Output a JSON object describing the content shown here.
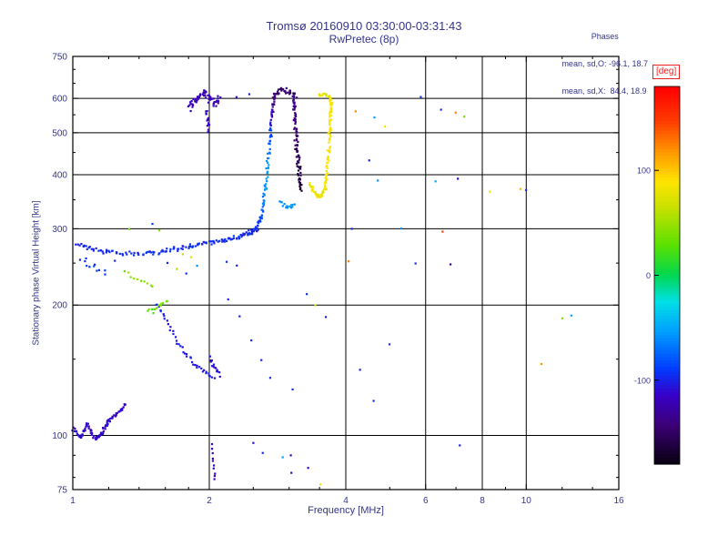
{
  "chart_data": {
    "type": "scatter",
    "title": "Tromsø 20160910 03:30:00-03:31:43",
    "subtitle": "RwPretec (8p)",
    "stats": {
      "header": "Phases",
      "line_o": "mean, sd,O: -96.1, 18.7",
      "line_x": "mean, sd,X:  84.4, 18.9"
    },
    "xlabel": "Frequency [MHz]",
    "ylabel": "Stationary phase Virtual Height [km]",
    "xscale": "log",
    "yscale": "log",
    "xlim": [
      1,
      16
    ],
    "ylim": [
      75,
      750
    ],
    "xticks": [
      1,
      2,
      4,
      6,
      8,
      10,
      16
    ],
    "yticks": [
      75,
      100,
      200,
      300,
      400,
      500,
      600,
      750
    ],
    "xgrid": [
      2,
      4,
      6,
      8,
      10
    ],
    "ygrid": [
      100,
      200,
      300,
      400,
      500,
      600
    ],
    "xminor": [
      1.2,
      1.4,
      1.6,
      1.8,
      2.5,
      3,
      3.5,
      5,
      7,
      9,
      12,
      14
    ],
    "yminor": [
      80,
      90,
      150,
      250,
      350,
      450,
      550,
      650,
      700
    ],
    "grid": true,
    "colorbar": {
      "label": "[deg]",
      "range": [
        -180,
        180
      ],
      "ticks": [
        100,
        0,
        -100
      ]
    },
    "colors": {
      "text": "#34348c",
      "axis": "#000000",
      "deg_label": "#ee2222",
      "background": "#ffffff"
    },
    "marker_size": 2.2,
    "colormap_stops": [
      [
        0.0,
        [
          10,
          0,
          20
        ]
      ],
      [
        0.1,
        [
          60,
          0,
          120
        ]
      ],
      [
        0.18,
        [
          55,
          0,
          200
        ]
      ],
      [
        0.25,
        [
          0,
          60,
          255
        ]
      ],
      [
        0.35,
        [
          0,
          160,
          255
        ]
      ],
      [
        0.43,
        [
          0,
          225,
          230
        ]
      ],
      [
        0.5,
        [
          0,
          215,
          80
        ]
      ],
      [
        0.58,
        [
          90,
          225,
          0
        ]
      ],
      [
        0.68,
        [
          200,
          225,
          0
        ]
      ],
      [
        0.75,
        [
          255,
          228,
          0
        ]
      ],
      [
        0.83,
        [
          255,
          150,
          0
        ]
      ],
      [
        0.91,
        [
          255,
          60,
          0
        ]
      ],
      [
        1.0,
        [
          255,
          0,
          0
        ]
      ]
    ],
    "traces": [
      {
        "name": "es-band",
        "path": [
          [
            1.0,
            104
          ],
          [
            1.04,
            99
          ],
          [
            1.08,
            106
          ],
          [
            1.12,
            98
          ],
          [
            1.16,
            101
          ],
          [
            1.2,
            108
          ],
          [
            1.25,
            112
          ],
          [
            1.31,
            117
          ]
        ],
        "n": 95,
        "phase": -115,
        "pj": 14,
        "xj": 2,
        "yj": 3
      },
      {
        "name": "f-trace",
        "path": [
          [
            1.02,
            276
          ],
          [
            1.15,
            266
          ],
          [
            1.3,
            262
          ],
          [
            1.5,
            264
          ],
          [
            1.7,
            270
          ],
          [
            1.9,
            276
          ],
          [
            2.1,
            281
          ],
          [
            2.3,
            287
          ],
          [
            2.45,
            293
          ],
          [
            2.55,
            301
          ]
        ],
        "n": 150,
        "phase": -98,
        "pj": 9,
        "xj": 2.5,
        "yj": 3
      },
      {
        "name": "o-riser",
        "path": [
          [
            2.55,
            302
          ],
          [
            2.6,
            320
          ],
          [
            2.64,
            348
          ],
          [
            2.67,
            385
          ],
          [
            2.7,
            432
          ],
          [
            2.72,
            482
          ],
          [
            2.74,
            532
          ],
          [
            2.76,
            577
          ],
          [
            2.79,
            614
          ]
        ],
        "n": 95,
        "phase": [
          -95,
          -88,
          -68,
          -55,
          -58,
          -80,
          -110,
          -132,
          -150
        ],
        "pj": 12,
        "xj": 2,
        "yj": 4
      },
      {
        "name": "o-top-arc",
        "path": [
          [
            2.8,
            618
          ],
          [
            2.9,
            630
          ],
          [
            3.0,
            624
          ],
          [
            3.1,
            612
          ]
        ],
        "n": 28,
        "phase": -148,
        "pj": 14,
        "xj": 3,
        "yj": 4
      },
      {
        "name": "purple-riser",
        "path": [
          [
            3.06,
            602
          ],
          [
            3.09,
            545
          ],
          [
            3.11,
            490
          ],
          [
            3.13,
            440
          ],
          [
            3.16,
            402
          ],
          [
            3.19,
            370
          ]
        ],
        "n": 80,
        "phase": [
          -128,
          -140,
          -150,
          -156,
          -162,
          -166
        ],
        "pj": 8,
        "xj": 2.5,
        "yj": 4
      },
      {
        "name": "cyan-base",
        "path": [
          [
            2.88,
            345
          ],
          [
            2.98,
            336
          ],
          [
            3.08,
            342
          ]
        ],
        "n": 16,
        "phase": -58,
        "pj": 14,
        "xj": 3,
        "yj": 4
      },
      {
        "name": "x-hook",
        "path": [
          [
            3.33,
            382
          ],
          [
            3.4,
            366
          ],
          [
            3.48,
            356
          ],
          [
            3.56,
            361
          ],
          [
            3.6,
            373
          ]
        ],
        "n": 42,
        "phase": 80,
        "pj": 12,
        "xj": 2,
        "yj": 3
      },
      {
        "name": "x-riser",
        "path": [
          [
            3.6,
            374
          ],
          [
            3.63,
            402
          ],
          [
            3.66,
            442
          ],
          [
            3.68,
            492
          ],
          [
            3.7,
            540
          ],
          [
            3.71,
            576
          ],
          [
            3.7,
            600
          ]
        ],
        "n": 75,
        "phase": 86,
        "pj": 9,
        "xj": 1.8,
        "yj": 3.5
      },
      {
        "name": "x-top",
        "path": [
          [
            3.69,
            606
          ],
          [
            3.6,
            611
          ],
          [
            3.5,
            607
          ]
        ],
        "n": 16,
        "phase": 80,
        "pj": 10,
        "xj": 2.5,
        "yj": 3
      },
      {
        "name": "echo-blob",
        "path": [
          [
            1.8,
            572
          ],
          [
            1.85,
            592
          ],
          [
            1.9,
            606
          ],
          [
            1.95,
            616
          ],
          [
            2.0,
            601
          ],
          [
            2.05,
            586
          ],
          [
            2.1,
            599
          ]
        ],
        "n": 55,
        "phase": -120,
        "pj": 12,
        "xj": 3,
        "yj": 6
      },
      {
        "name": "echo-column",
        "path": [
          [
            1.97,
            562
          ],
          [
            1.98,
            532
          ],
          [
            2.0,
            506
          ]
        ],
        "n": 14,
        "phase": -116,
        "pj": 10,
        "xj": 1.5,
        "yj": 5
      },
      {
        "name": "e-diag",
        "path": [
          [
            1.52,
            201
          ],
          [
            1.6,
            186
          ],
          [
            1.68,
            169
          ],
          [
            1.76,
            156
          ],
          [
            1.85,
            147
          ],
          [
            1.95,
            141
          ],
          [
            2.05,
            136
          ]
        ],
        "n": 42,
        "phase": -105,
        "pj": 11,
        "xj": 2,
        "yj": 3
      },
      {
        "name": "e-blob",
        "path": [
          [
            2.0,
            150
          ],
          [
            2.05,
            144
          ],
          [
            2.1,
            139
          ]
        ],
        "n": 16,
        "phase": -108,
        "pj": 10,
        "xj": 2,
        "yj": 4
      },
      {
        "name": "e-green",
        "path": [
          [
            1.47,
            191
          ],
          [
            1.54,
            198
          ],
          [
            1.61,
            205
          ]
        ],
        "n": 14,
        "phase": 35,
        "pj": 22,
        "xj": 2,
        "yj": 4
      },
      {
        "name": "green-mid",
        "path": [
          [
            1.3,
            239
          ],
          [
            1.4,
            229
          ],
          [
            1.5,
            221
          ]
        ],
        "n": 10,
        "phase": 45,
        "pj": 20,
        "xj": 2,
        "yj": 4
      },
      {
        "name": "bottom-column",
        "path": [
          [
            2.03,
            96
          ],
          [
            2.04,
            86
          ],
          [
            2.06,
            79
          ]
        ],
        "n": 10,
        "phase": -120,
        "pj": 10,
        "xj": 1.2,
        "yj": 3
      },
      {
        "name": "left-sparse",
        "path": [
          [
            1.04,
            251
          ],
          [
            1.1,
            244
          ],
          [
            1.17,
            237
          ]
        ],
        "n": 8,
        "phase": -95,
        "pj": 10,
        "xj": 2,
        "yj": 4
      }
    ],
    "points": [
      [
        1.07,
        256,
        -95
      ],
      [
        1.12,
        248,
        -100
      ],
      [
        1.18,
        241,
        -92
      ],
      [
        1.24,
        253,
        -100
      ],
      [
        1.33,
        300,
        40
      ],
      [
        1.5,
        308,
        -90
      ],
      [
        1.55,
        297,
        35
      ],
      [
        1.62,
        250,
        -100
      ],
      [
        1.7,
        242,
        52
      ],
      [
        1.75,
        262,
        62
      ],
      [
        1.82,
        258,
        76
      ],
      [
        1.78,
        236,
        -95
      ],
      [
        1.88,
        246,
        -60
      ],
      [
        2.18,
        252,
        -95
      ],
      [
        2.3,
        247,
        -100
      ],
      [
        2.2,
        206,
        -100
      ],
      [
        2.33,
        188,
        -104
      ],
      [
        2.48,
        166,
        -95
      ],
      [
        2.6,
        149,
        -100
      ],
      [
        2.72,
        136,
        -95
      ],
      [
        2.5,
        96,
        -110
      ],
      [
        2.62,
        91,
        -100
      ],
      [
        2.9,
        89,
        -55
      ],
      [
        3.02,
        90,
        -118
      ],
      [
        3.04,
        82,
        -122
      ],
      [
        3.3,
        84,
        -120
      ],
      [
        3.52,
        77,
        80
      ],
      [
        3.28,
        212,
        -95
      ],
      [
        3.42,
        200,
        72
      ],
      [
        3.62,
        188,
        -100
      ],
      [
        3.05,
        128,
        -100
      ],
      [
        4.05,
        252,
        128
      ],
      [
        4.12,
        300,
        -95
      ],
      [
        4.3,
        142,
        -104
      ],
      [
        4.6,
        120,
        -95
      ],
      [
        5.0,
        162,
        -95
      ],
      [
        4.5,
        432,
        -100
      ],
      [
        4.7,
        388,
        -60
      ],
      [
        4.2,
        560,
        125
      ],
      [
        4.62,
        542,
        -55
      ],
      [
        4.88,
        518,
        85
      ],
      [
        5.3,
        300,
        -60
      ],
      [
        5.7,
        250,
        -95
      ],
      [
        5.85,
        604,
        -95
      ],
      [
        6.3,
        386,
        -50
      ],
      [
        6.55,
        296,
        148
      ],
      [
        6.8,
        248,
        -130
      ],
      [
        6.5,
        565,
        -95
      ],
      [
        7.0,
        556,
        128
      ],
      [
        7.05,
        392,
        -120
      ],
      [
        7.15,
        95,
        -100
      ],
      [
        7.3,
        545,
        40
      ],
      [
        8.3,
        366,
        92
      ],
      [
        9.7,
        370,
        108
      ],
      [
        10.0,
        368,
        -95
      ],
      [
        10.8,
        146,
        118
      ],
      [
        12.0,
        186,
        42
      ],
      [
        12.6,
        189,
        -55
      ],
      [
        2.45,
        613,
        -100
      ],
      [
        2.3,
        604,
        -114
      ]
    ]
  }
}
